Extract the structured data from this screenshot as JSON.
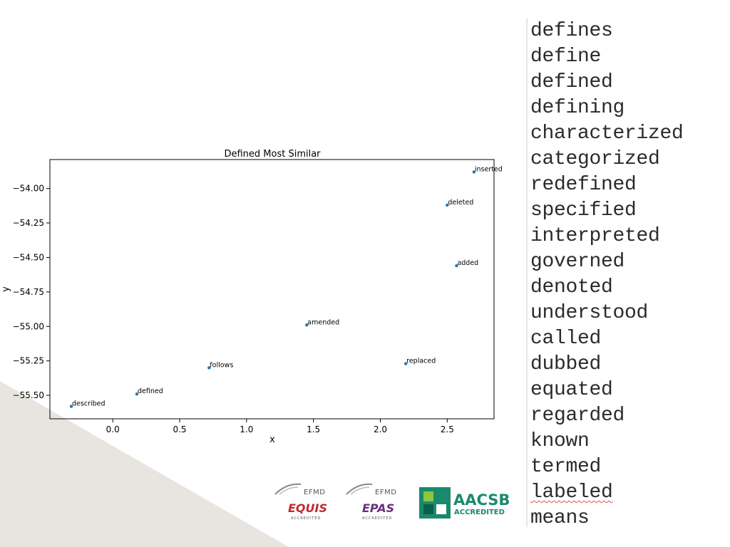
{
  "chart_data": {
    "type": "scatter",
    "title": "Defined Most Similar",
    "xlabel": "x",
    "ylabel": "y",
    "xlim": [
      -0.47,
      2.85
    ],
    "ylim": [
      -55.67,
      -53.79
    ],
    "xticks": [
      0.0,
      0.5,
      1.0,
      1.5,
      2.0,
      2.5
    ],
    "xtick_labels": [
      "0.0",
      "0.5",
      "1.0",
      "1.5",
      "2.0",
      "2.5"
    ],
    "yticks": [
      -54.0,
      -54.25,
      -54.5,
      -54.75,
      -55.0,
      -55.25,
      -55.5
    ],
    "ytick_labels": [
      "−54.00",
      "−54.25",
      "−54.50",
      "−54.75",
      "−55.00",
      "−55.25",
      "−55.50"
    ],
    "grid": false,
    "point_color": "#1f77b4",
    "points": [
      {
        "label": "inserted",
        "x": 2.7,
        "y": -53.88
      },
      {
        "label": "deleted",
        "x": 2.5,
        "y": -54.12
      },
      {
        "label": "added",
        "x": 2.57,
        "y": -54.56
      },
      {
        "label": "amended",
        "x": 1.45,
        "y": -54.99
      },
      {
        "label": "replaced",
        "x": 2.19,
        "y": -55.27
      },
      {
        "label": "follows",
        "x": 0.72,
        "y": -55.3
      },
      {
        "label": "defined",
        "x": 0.18,
        "y": -55.49
      },
      {
        "label": "described",
        "x": -0.31,
        "y": -55.58
      }
    ]
  },
  "word_list": [
    "defines",
    "define",
    "defined",
    "defining",
    "characterized",
    "categorized",
    "redefined",
    "specified",
    "interpreted",
    "governed",
    "denoted",
    "understood",
    "called",
    "dubbed",
    "equated",
    "regarded",
    "known",
    "termed",
    "labeled",
    "means"
  ],
  "flagged_words": [
    "labeled"
  ],
  "logos": {
    "equis": {
      "org": "EFMD",
      "name": "EQUIS",
      "sub": "ACCREDITED",
      "color": "#c0282d"
    },
    "epas": {
      "org": "EFMD",
      "name": "EPAS",
      "sub": "ACCREDITED",
      "color": "#6a2d7c"
    },
    "aacsb": {
      "name": "AACSB",
      "sub": "ACCREDITED",
      "color": "#1a8a6e",
      "accent": "#8dc63f"
    }
  },
  "colors": {
    "background_wedge": "#e8e5e0"
  }
}
